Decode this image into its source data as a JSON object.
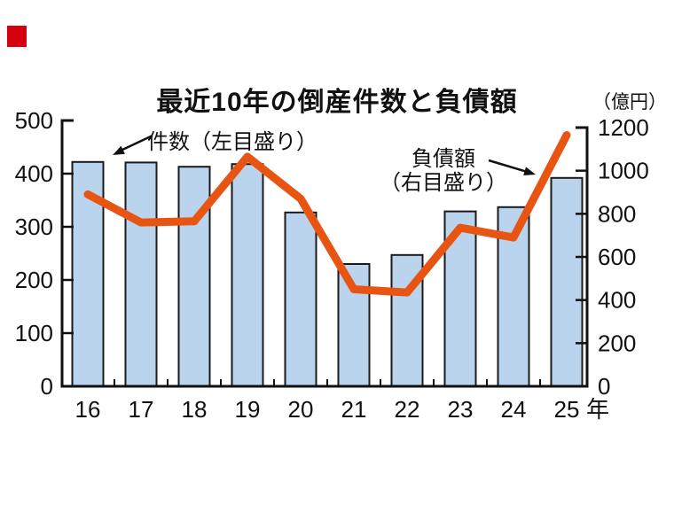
{
  "decoration": {
    "corner_mark_color": "#d7000f"
  },
  "title": "最近10年の倒産件数と負債額",
  "annotations": {
    "bar_series_label": "件数（左目盛り）",
    "line_series_label_line1": "負債額",
    "line_series_label_line2": "（右目盛り）"
  },
  "chart_data": {
    "type": "bar+line",
    "title": "最近10年の倒産件数と負債額",
    "categories": [
      "16",
      "17",
      "18",
      "19",
      "20",
      "21",
      "22",
      "23",
      "24",
      "25"
    ],
    "x_axis": {
      "suffix_label": "年"
    },
    "series": [
      {
        "name": "件数（左目盛り）",
        "type": "bar",
        "axis": "left",
        "color": "#b9d4ec",
        "border_color": "#1a1a1a",
        "values": [
          422,
          421,
          413,
          418,
          327,
          230,
          247,
          329,
          337,
          392
        ]
      },
      {
        "name": "負債額（右目盛り）",
        "type": "line",
        "axis": "right",
        "color": "#e85513",
        "values": [
          890,
          760,
          765,
          1065,
          870,
          450,
          435,
          735,
          690,
          1165
        ]
      }
    ],
    "left_axis": {
      "min": 0,
      "max": 500,
      "ticks": [
        0,
        100,
        200,
        300,
        400,
        500
      ]
    },
    "right_axis": {
      "min": 0,
      "max": 1200,
      "ticks": [
        0,
        200,
        400,
        600,
        800,
        1000,
        1200
      ],
      "unit_label": "（億円）"
    },
    "grid": false,
    "legend_position": "inline-annotations"
  }
}
